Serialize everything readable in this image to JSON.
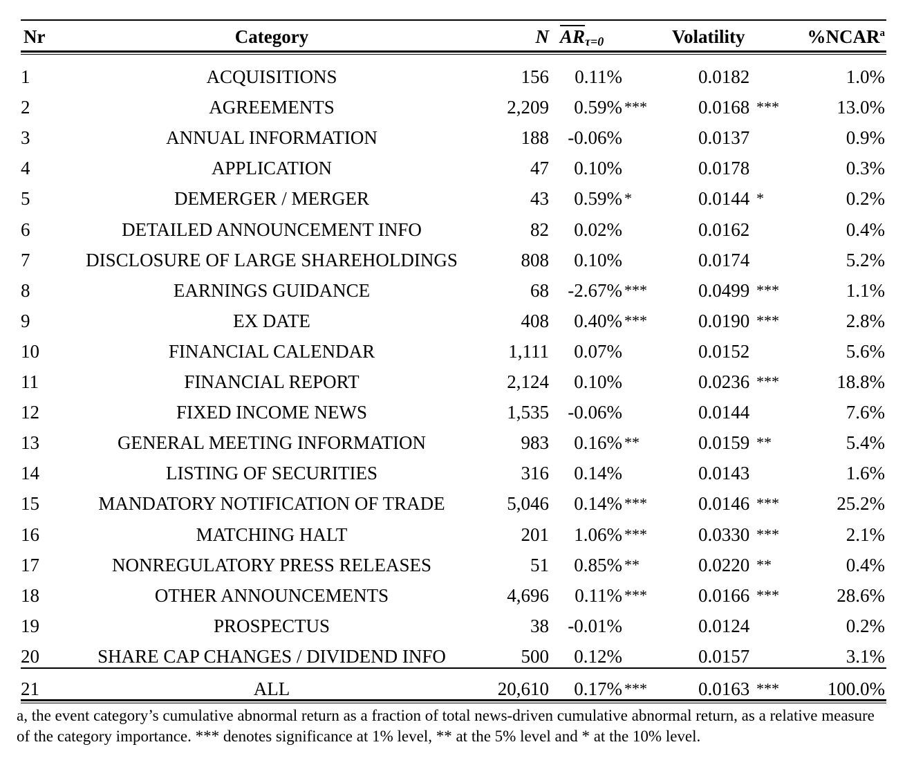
{
  "table": {
    "headers": {
      "nr": "Nr",
      "category": "Category",
      "n": "N",
      "ar_main": "AR",
      "ar_sub": "τ=0",
      "volatility": "Volatility",
      "ncar": "%NCAR",
      "ncar_sup": "a"
    },
    "rows": [
      {
        "nr": "1",
        "category": "ACQUISITIONS",
        "n": "156",
        "ar": "0.11%",
        "ar_sig": "",
        "vol": "0.0182",
        "vol_sig": "",
        "ncar": "1.0%"
      },
      {
        "nr": "2",
        "category": "AGREEMENTS",
        "n": "2,209",
        "ar": "0.59%",
        "ar_sig": "***",
        "vol": "0.0168",
        "vol_sig": "***",
        "ncar": "13.0%"
      },
      {
        "nr": "3",
        "category": "ANNUAL INFORMATION",
        "n": "188",
        "ar": "-0.06%",
        "ar_sig": "",
        "vol": "0.0137",
        "vol_sig": "",
        "ncar": "0.9%"
      },
      {
        "nr": "4",
        "category": "APPLICATION",
        "n": "47",
        "ar": "0.10%",
        "ar_sig": "",
        "vol": "0.0178",
        "vol_sig": "",
        "ncar": "0.3%"
      },
      {
        "nr": "5",
        "category": "DEMERGER / MERGER",
        "n": "43",
        "ar": "0.59%",
        "ar_sig": "*",
        "vol": "0.0144",
        "vol_sig": "*",
        "ncar": "0.2%"
      },
      {
        "nr": "6",
        "category": "DETAILED ANNOUNCEMENT INFO",
        "n": "82",
        "ar": "0.02%",
        "ar_sig": "",
        "vol": "0.0162",
        "vol_sig": "",
        "ncar": "0.4%"
      },
      {
        "nr": "7",
        "category": "DISCLOSURE OF LARGE SHAREHOLDINGS",
        "n": "808",
        "ar": "0.10%",
        "ar_sig": "",
        "vol": "0.0174",
        "vol_sig": "",
        "ncar": "5.2%"
      },
      {
        "nr": "8",
        "category": "EARNINGS GUIDANCE",
        "n": "68",
        "ar": "-2.67%",
        "ar_sig": "***",
        "vol": "0.0499",
        "vol_sig": "***",
        "ncar": "1.1%"
      },
      {
        "nr": "9",
        "category": "EX DATE",
        "n": "408",
        "ar": "0.40%",
        "ar_sig": "***",
        "vol": "0.0190",
        "vol_sig": "***",
        "ncar": "2.8%"
      },
      {
        "nr": "10",
        "category": "FINANCIAL CALENDAR",
        "n": "1,111",
        "ar": "0.07%",
        "ar_sig": "",
        "vol": "0.0152",
        "vol_sig": "",
        "ncar": "5.6%"
      },
      {
        "nr": "11",
        "category": "FINANCIAL REPORT",
        "n": "2,124",
        "ar": "0.10%",
        "ar_sig": "",
        "vol": "0.0236",
        "vol_sig": "***",
        "ncar": "18.8%"
      },
      {
        "nr": "12",
        "category": "FIXED INCOME NEWS",
        "n": "1,535",
        "ar": "-0.06%",
        "ar_sig": "",
        "vol": "0.0144",
        "vol_sig": "",
        "ncar": "7.6%"
      },
      {
        "nr": "13",
        "category": "GENERAL MEETING INFORMATION",
        "n": "983",
        "ar": "0.16%",
        "ar_sig": "**",
        "vol": "0.0159",
        "vol_sig": "**",
        "ncar": "5.4%"
      },
      {
        "nr": "14",
        "category": "LISTING OF SECURITIES",
        "n": "316",
        "ar": "0.14%",
        "ar_sig": "",
        "vol": "0.0143",
        "vol_sig": "",
        "ncar": "1.6%"
      },
      {
        "nr": "15",
        "category": "MANDATORY NOTIFICATION OF TRADE",
        "n": "5,046",
        "ar": "0.14%",
        "ar_sig": "***",
        "vol": "0.0146",
        "vol_sig": "***",
        "ncar": "25.2%"
      },
      {
        "nr": "16",
        "category": "MATCHING HALT",
        "n": "201",
        "ar": "1.06%",
        "ar_sig": "***",
        "vol": "0.0330",
        "vol_sig": "***",
        "ncar": "2.1%"
      },
      {
        "nr": "17",
        "category": "NONREGULATORY PRESS RELEASES",
        "n": "51",
        "ar": "0.85%",
        "ar_sig": "**",
        "vol": "0.0220",
        "vol_sig": "**",
        "ncar": "0.4%"
      },
      {
        "nr": "18",
        "category": "OTHER ANNOUNCEMENTS",
        "n": "4,696",
        "ar": "0.11%",
        "ar_sig": "***",
        "vol": "0.0166",
        "vol_sig": "***",
        "ncar": "28.6%"
      },
      {
        "nr": "19",
        "category": "PROSPECTUS",
        "n": "38",
        "ar": "-0.01%",
        "ar_sig": "",
        "vol": "0.0124",
        "vol_sig": "",
        "ncar": "0.2%"
      },
      {
        "nr": "20",
        "category": "SHARE CAP CHANGES / DIVIDEND INFO",
        "n": "500",
        "ar": "0.12%",
        "ar_sig": "",
        "vol": "0.0157",
        "vol_sig": "",
        "ncar": "3.1%"
      }
    ],
    "total": {
      "nr": "21",
      "category": "ALL",
      "n": "20,610",
      "ar": "0.17%",
      "ar_sig": "***",
      "vol": "0.0163",
      "vol_sig": "***",
      "ncar": "100.0%"
    }
  },
  "footnote": {
    "part1": "a, the event category’s cumulative abnormal return as a fraction of total news-driven cumulative abnormal return, as a relative measure",
    "part2": "of the category importance. *** denotes significance at 1% level, ** at the 5% level and * at the 10% level."
  }
}
